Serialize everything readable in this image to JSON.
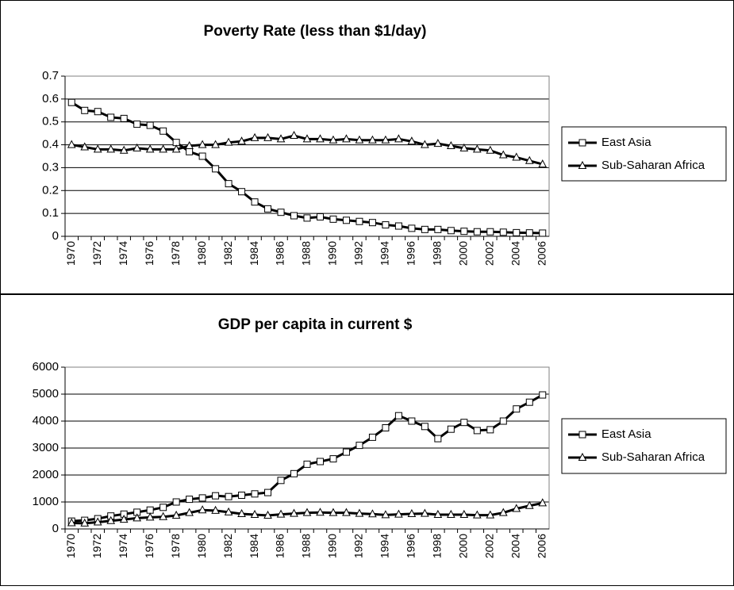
{
  "chart_data": [
    {
      "type": "line",
      "title": "Poverty Rate (less than $1/day)",
      "categories": [
        "1970",
        null,
        "1972",
        null,
        "1974",
        null,
        "1976",
        null,
        "1978",
        null,
        "1980",
        null,
        "1982",
        null,
        "1984",
        null,
        "1986",
        null,
        "1988",
        null,
        "1990",
        null,
        "1992",
        null,
        "1994",
        null,
        "1996",
        null,
        "1998",
        null,
        "2000",
        null,
        "2002",
        null,
        "2004",
        null,
        "2006"
      ],
      "series": [
        {
          "name": "East Asia",
          "color": "#000000",
          "marker": "square",
          "values": [
            0.585,
            0.55,
            0.545,
            0.52,
            0.515,
            0.49,
            0.485,
            0.46,
            0.41,
            0.37,
            0.35,
            0.295,
            0.23,
            0.195,
            0.15,
            0.12,
            0.105,
            0.09,
            0.08,
            0.085,
            0.075,
            0.07,
            0.065,
            0.06,
            0.05,
            0.045,
            0.035,
            0.03,
            0.03,
            0.025,
            0.022,
            0.02,
            0.02,
            0.018,
            0.016,
            0.015,
            0.014
          ]
        },
        {
          "name": "Sub-Saharan Africa",
          "color": "#000000",
          "marker": "triangle",
          "values": [
            0.4,
            0.39,
            0.38,
            0.38,
            0.375,
            0.385,
            0.38,
            0.38,
            0.38,
            0.395,
            0.4,
            0.4,
            0.41,
            0.415,
            0.43,
            0.43,
            0.425,
            0.44,
            0.425,
            0.425,
            0.42,
            0.425,
            0.42,
            0.42,
            0.42,
            0.425,
            0.415,
            0.4,
            0.405,
            0.395,
            0.385,
            0.38,
            0.375,
            0.355,
            0.345,
            0.33,
            0.315
          ]
        }
      ],
      "ylim": [
        0,
        0.7
      ],
      "yticks": [
        0,
        0.1,
        0.2,
        0.3,
        0.4,
        0.5,
        0.6,
        0.7
      ],
      "grid": true,
      "legend": "right"
    },
    {
      "type": "line",
      "title": "GDP per capita in current $",
      "categories": [
        "1970",
        null,
        "1972",
        null,
        "1974",
        null,
        "1976",
        null,
        "1978",
        null,
        "1980",
        null,
        "1982",
        null,
        "1984",
        null,
        "1986",
        null,
        "1988",
        null,
        "1990",
        null,
        "1992",
        null,
        "1994",
        null,
        "1996",
        null,
        "1998",
        null,
        "2000",
        null,
        "2002",
        null,
        "2004",
        null,
        "2006"
      ],
      "series": [
        {
          "name": "East Asia",
          "color": "#000000",
          "marker": "square",
          "values": [
            290,
            320,
            380,
            480,
            550,
            620,
            700,
            800,
            1000,
            1100,
            1150,
            1230,
            1200,
            1250,
            1300,
            1350,
            1800,
            2050,
            2400,
            2500,
            2600,
            2850,
            3100,
            3400,
            3750,
            4200,
            4000,
            3800,
            3350,
            3700,
            3950,
            3650,
            3680,
            4000,
            4450,
            4700,
            4970
          ]
        },
        {
          "name": "Sub-Saharan Africa",
          "color": "#000000",
          "marker": "triangle",
          "values": [
            220,
            210,
            250,
            300,
            350,
            400,
            430,
            450,
            500,
            600,
            700,
            680,
            620,
            560,
            530,
            500,
            540,
            570,
            600,
            610,
            600,
            600,
            570,
            550,
            520,
            540,
            560,
            570,
            530,
            530,
            530,
            510,
            510,
            600,
            750,
            860,
            960
          ]
        }
      ],
      "ylim": [
        0,
        6000
      ],
      "yticks": [
        0,
        1000,
        2000,
        3000,
        4000,
        5000,
        6000
      ],
      "grid": true,
      "legend": "right"
    }
  ]
}
